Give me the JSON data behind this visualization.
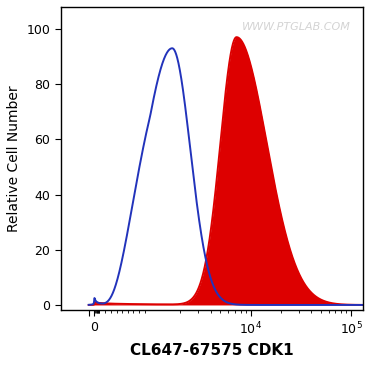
{
  "xlabel": "CL647-67575 CDK1",
  "ylabel": "Relative Cell Number",
  "ylim": [
    -2,
    108
  ],
  "yticks": [
    0,
    20,
    40,
    60,
    80,
    100
  ],
  "watermark": "WWW.PTGLAB.COM",
  "background_color": "#ffffff",
  "plot_bg_color": "#ffffff",
  "blue_color": "#2233bb",
  "red_color": "#dd0000",
  "xlabel_fontsize": 11,
  "ylabel_fontsize": 10,
  "tick_fontsize": 9,
  "watermark_fontsize": 8,
  "linewidth": 1.4,
  "linthresh": 1000,
  "linscale": 0.5
}
